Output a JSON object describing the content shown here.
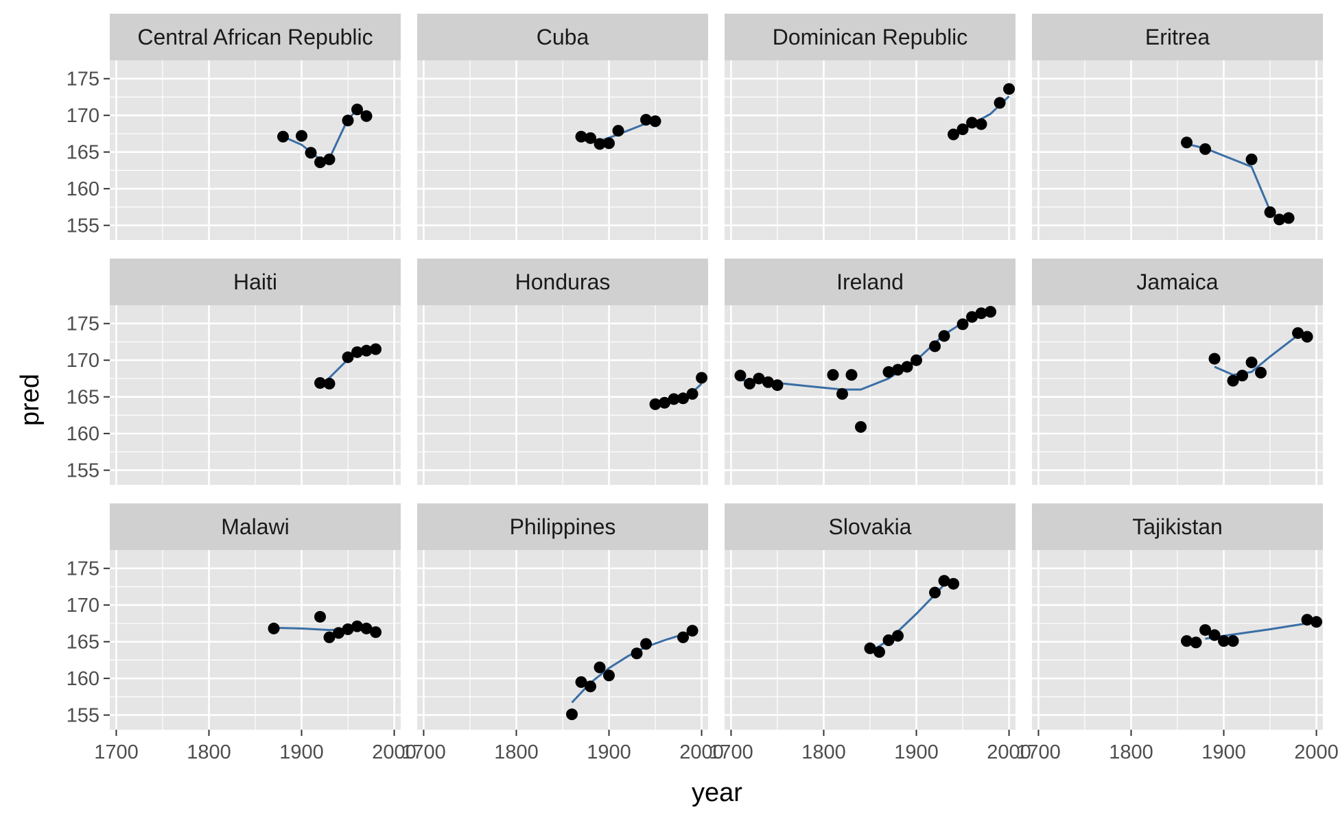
{
  "chart_data": {
    "type": "scatter",
    "facet_layout": "3 rows x 4 columns",
    "xlabel": "year",
    "ylabel": "pred",
    "xlim": [
      1693,
      2007
    ],
    "ylim": [
      153,
      177.5
    ],
    "x_ticks": [
      1700,
      1800,
      1900,
      2000
    ],
    "x_tick_labels": [
      "1700",
      "1800",
      "1900",
      "2000"
    ],
    "y_ticks": [
      155,
      160,
      165,
      170,
      175
    ],
    "y_tick_labels": [
      "155",
      "160",
      "165",
      "170",
      "175"
    ],
    "grid": true,
    "colors": {
      "panel_background": "#e5e5e5",
      "strip_background": "#d0d0d0",
      "grid": "#ffffff",
      "point": "#000000",
      "line": "#3a6ea5"
    },
    "panels": [
      {
        "title": "Central African Republic",
        "points": [
          [
            1880,
            167.1
          ],
          [
            1900,
            167.2
          ],
          [
            1910,
            164.9
          ],
          [
            1920,
            163.6
          ],
          [
            1930,
            164.0
          ],
          [
            1950,
            169.3
          ],
          [
            1960,
            170.8
          ],
          [
            1970,
            169.9
          ]
        ],
        "line": [
          [
            1880,
            167.1
          ],
          [
            1900,
            166.0
          ],
          [
            1920,
            164.0
          ],
          [
            1930,
            164.1
          ],
          [
            1950,
            169.5
          ],
          [
            1960,
            170.7
          ],
          [
            1970,
            170.0
          ]
        ]
      },
      {
        "title": "Cuba",
        "points": [
          [
            1870,
            167.1
          ],
          [
            1880,
            166.9
          ],
          [
            1890,
            166.1
          ],
          [
            1900,
            166.2
          ],
          [
            1910,
            167.9
          ],
          [
            1940,
            169.4
          ],
          [
            1950,
            169.2
          ]
        ],
        "line": [
          [
            1870,
            166.6
          ],
          [
            1890,
            166.5
          ],
          [
            1910,
            167.4
          ],
          [
            1940,
            168.9
          ],
          [
            1950,
            169.3
          ]
        ]
      },
      {
        "title": "Dominican Republic",
        "points": [
          [
            1940,
            167.4
          ],
          [
            1950,
            168.1
          ],
          [
            1960,
            169.0
          ],
          [
            1970,
            168.8
          ],
          [
            1990,
            171.7
          ],
          [
            2000,
            173.6
          ]
        ],
        "line": [
          [
            1940,
            167.2
          ],
          [
            1960,
            168.8
          ],
          [
            1980,
            170.2
          ],
          [
            2000,
            172.6
          ]
        ]
      },
      {
        "title": "Eritrea",
        "points": [
          [
            1860,
            166.3
          ],
          [
            1880,
            165.4
          ],
          [
            1930,
            164.0
          ],
          [
            1950,
            156.8
          ],
          [
            1960,
            155.8
          ],
          [
            1970,
            156.0
          ]
        ],
        "line": [
          [
            1860,
            166.1
          ],
          [
            1880,
            165.5
          ],
          [
            1930,
            163.0
          ],
          [
            1950,
            157.0
          ],
          [
            1960,
            156.0
          ],
          [
            1970,
            156.0
          ]
        ]
      },
      {
        "title": "Haiti",
        "points": [
          [
            1920,
            166.9
          ],
          [
            1930,
            166.8
          ],
          [
            1950,
            170.4
          ],
          [
            1960,
            171.1
          ],
          [
            1970,
            171.3
          ],
          [
            1980,
            171.5
          ]
        ],
        "line": [
          [
            1920,
            166.5
          ],
          [
            1930,
            167.6
          ],
          [
            1950,
            170.1
          ],
          [
            1960,
            170.9
          ],
          [
            1970,
            171.3
          ],
          [
            1980,
            171.5
          ]
        ]
      },
      {
        "title": "Honduras",
        "points": [
          [
            1950,
            164.0
          ],
          [
            1960,
            164.2
          ],
          [
            1970,
            164.7
          ],
          [
            1980,
            164.8
          ],
          [
            1990,
            165.4
          ],
          [
            2000,
            167.6
          ]
        ],
        "line": [
          [
            1950,
            164.0
          ],
          [
            1970,
            164.4
          ],
          [
            1990,
            165.6
          ],
          [
            2000,
            166.8
          ]
        ]
      },
      {
        "title": "Ireland",
        "points": [
          [
            1710,
            167.9
          ],
          [
            1720,
            166.8
          ],
          [
            1730,
            167.5
          ],
          [
            1740,
            167.0
          ],
          [
            1750,
            166.6
          ],
          [
            1810,
            168.0
          ],
          [
            1820,
            165.4
          ],
          [
            1830,
            168.0
          ],
          [
            1840,
            160.9
          ],
          [
            1870,
            168.4
          ],
          [
            1880,
            168.7
          ],
          [
            1890,
            169.1
          ],
          [
            1900,
            170.0
          ],
          [
            1920,
            171.9
          ],
          [
            1930,
            173.3
          ],
          [
            1950,
            174.9
          ],
          [
            1960,
            175.9
          ],
          [
            1970,
            176.4
          ],
          [
            1980,
            176.6
          ]
        ],
        "line": [
          [
            1710,
            167.3
          ],
          [
            1750,
            166.9
          ],
          [
            1780,
            166.5
          ],
          [
            1820,
            166.0
          ],
          [
            1840,
            166.0
          ],
          [
            1870,
            167.5
          ],
          [
            1900,
            170.0
          ],
          [
            1930,
            173.5
          ],
          [
            1960,
            175.9
          ],
          [
            1980,
            176.6
          ]
        ]
      },
      {
        "title": "Jamaica",
        "points": [
          [
            1890,
            170.2
          ],
          [
            1910,
            167.2
          ],
          [
            1920,
            167.9
          ],
          [
            1930,
            169.7
          ],
          [
            1940,
            168.3
          ],
          [
            1980,
            173.7
          ],
          [
            1990,
            173.2
          ]
        ],
        "line": [
          [
            1890,
            169.1
          ],
          [
            1910,
            168.0
          ],
          [
            1930,
            168.4
          ],
          [
            1950,
            170.5
          ],
          [
            1980,
            173.4
          ],
          [
            1990,
            173.4
          ]
        ]
      },
      {
        "title": "Malawi",
        "points": [
          [
            1870,
            166.8
          ],
          [
            1920,
            168.4
          ],
          [
            1930,
            165.6
          ],
          [
            1940,
            166.2
          ],
          [
            1950,
            166.7
          ],
          [
            1960,
            167.1
          ],
          [
            1970,
            166.8
          ],
          [
            1980,
            166.3
          ]
        ],
        "line": [
          [
            1870,
            166.9
          ],
          [
            1900,
            166.8
          ],
          [
            1930,
            166.6
          ],
          [
            1950,
            166.7
          ],
          [
            1960,
            167.0
          ],
          [
            1970,
            166.8
          ],
          [
            1980,
            166.3
          ]
        ]
      },
      {
        "title": "Philippines",
        "points": [
          [
            1860,
            155.1
          ],
          [
            1870,
            159.5
          ],
          [
            1880,
            158.9
          ],
          [
            1890,
            161.5
          ],
          [
            1900,
            160.4
          ],
          [
            1930,
            163.4
          ],
          [
            1940,
            164.7
          ],
          [
            1980,
            165.6
          ],
          [
            1990,
            166.5
          ]
        ],
        "line": [
          [
            1860,
            156.7
          ],
          [
            1880,
            159.4
          ],
          [
            1900,
            161.4
          ],
          [
            1920,
            163.0
          ],
          [
            1940,
            164.3
          ],
          [
            1960,
            165.2
          ],
          [
            1990,
            166.4
          ]
        ]
      },
      {
        "title": "Slovakia",
        "points": [
          [
            1850,
            164.1
          ],
          [
            1860,
            163.6
          ],
          [
            1870,
            165.2
          ],
          [
            1880,
            165.8
          ],
          [
            1920,
            171.7
          ],
          [
            1930,
            173.3
          ],
          [
            1940,
            172.9
          ]
        ],
        "line": [
          [
            1850,
            163.6
          ],
          [
            1870,
            165.2
          ],
          [
            1900,
            168.8
          ],
          [
            1920,
            171.4
          ],
          [
            1930,
            172.8
          ],
          [
            1940,
            173.1
          ]
        ]
      },
      {
        "title": "Tajikistan",
        "points": [
          [
            1860,
            165.1
          ],
          [
            1870,
            164.9
          ],
          [
            1880,
            166.6
          ],
          [
            1890,
            165.9
          ],
          [
            1900,
            165.1
          ],
          [
            1910,
            165.1
          ],
          [
            1990,
            168.0
          ],
          [
            2000,
            167.7
          ]
        ],
        "line": [
          [
            1880,
            165.4
          ],
          [
            1900,
            165.8
          ],
          [
            1950,
            166.7
          ],
          [
            1990,
            167.5
          ],
          [
            2000,
            167.7
          ]
        ]
      }
    ]
  }
}
